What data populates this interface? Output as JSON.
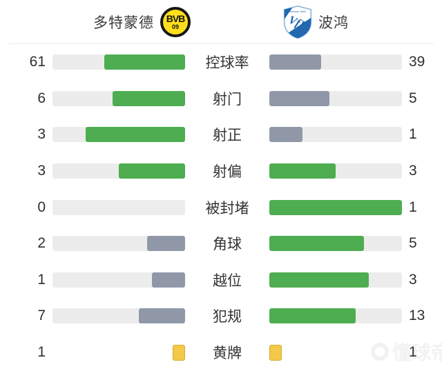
{
  "header": {
    "home": {
      "name": "多特蒙德",
      "logo_text": "BVB",
      "logo_sub": "09"
    },
    "away": {
      "name": "波鸿",
      "logo_text": "VfL",
      "logo_sub": "Bochum 1848"
    }
  },
  "stats": {
    "rows": [
      {
        "label": "控球率",
        "home": 61,
        "away": 39,
        "type": "bar"
      },
      {
        "label": "射门",
        "home": 6,
        "away": 5,
        "type": "bar"
      },
      {
        "label": "射正",
        "home": 3,
        "away": 1,
        "type": "bar"
      },
      {
        "label": "射偏",
        "home": 3,
        "away": 3,
        "type": "bar"
      },
      {
        "label": "被封堵",
        "home": 0,
        "away": 1,
        "type": "bar"
      },
      {
        "label": "角球",
        "home": 2,
        "away": 5,
        "type": "bar"
      },
      {
        "label": "越位",
        "home": 1,
        "away": 3,
        "type": "bar"
      },
      {
        "label": "犯规",
        "home": 7,
        "away": 13,
        "type": "bar"
      },
      {
        "label": "黄牌",
        "home": 1,
        "away": 1,
        "type": "card"
      }
    ]
  },
  "colors": {
    "leading_bar": "#4dad50",
    "trailing_bar": "#9098a8",
    "track": "#ececec",
    "yellow_card": "#f3c94a",
    "yellow_card_border": "#d8a832",
    "bvb_yellow": "#ffdf1b",
    "bochum_blue": "#2268ae"
  },
  "watermark": {
    "text": "懂球帝"
  },
  "chart_data": {
    "type": "bar",
    "orientation": "horizontal-paired",
    "categories": [
      "控球率",
      "射门",
      "射正",
      "射偏",
      "被封堵",
      "角球",
      "越位",
      "犯规",
      "黄牌"
    ],
    "series": [
      {
        "name": "多特蒙德",
        "values": [
          61,
          6,
          3,
          3,
          0,
          2,
          1,
          7,
          1
        ]
      },
      {
        "name": "波鸿",
        "values": [
          39,
          5,
          1,
          3,
          1,
          5,
          3,
          13,
          1
        ]
      }
    ],
    "bar_scale": "value / (home + away) of each row",
    "highlight_rule": "higher value rendered green, lower rendered gray-blue, ties both green; 黄牌 row rendered as yellow-card icons",
    "legend_position": "header",
    "grid": false,
    "title": ""
  }
}
